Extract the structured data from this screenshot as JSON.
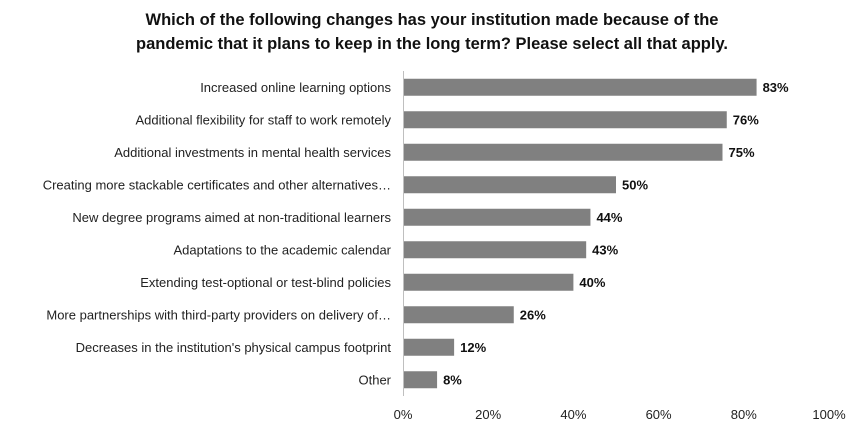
{
  "chart_data": {
    "type": "bar",
    "orientation": "horizontal",
    "title_lines": [
      "Which of the following changes has your institution made because of the",
      "pandemic that it plans to keep in the long term? Please select all that apply."
    ],
    "categories": [
      "Increased online learning options",
      "Additional flexibility for staff to work remotely",
      "Additional investments in mental health services",
      "Creating more stackable certificates and other alternatives…",
      "New degree programs aimed at non-traditional learners",
      "Adaptations to the academic calendar",
      "Extending test-optional or test-blind policies",
      "More partnerships with third-party providers on delivery of…",
      "Decreases in the institution's physical campus footprint",
      "Other"
    ],
    "values": [
      83,
      76,
      75,
      50,
      44,
      43,
      40,
      26,
      12,
      8
    ],
    "value_labels": [
      "83%",
      "76%",
      "75%",
      "50%",
      "44%",
      "43%",
      "40%",
      "26%",
      "12%",
      "8%"
    ],
    "xlim": [
      0,
      100
    ],
    "x_ticks": [
      0,
      20,
      40,
      60,
      80,
      100
    ],
    "x_tick_labels": [
      "0%",
      "20%",
      "40%",
      "60%",
      "80%",
      "100%"
    ],
    "bar_color": "#808080",
    "grid": false,
    "legend": "none"
  }
}
